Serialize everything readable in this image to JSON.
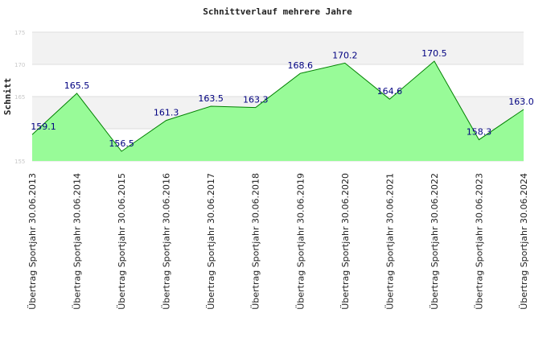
{
  "chart_data": {
    "type": "area",
    "title": "Schnittverlauf mehrere Jahre",
    "ylabel": "Schnitt",
    "xlabel": "",
    "ylim": [
      155,
      175
    ],
    "yticks": [
      "155",
      "165",
      "170",
      "175"
    ],
    "categories": [
      "Übertrag Sportjahr 30.06.2013",
      "Übertrag Sportjahr 30.06.2014",
      "Übertrag Sportjahr 30.06.2015",
      "Übertrag Sportjahr 30.06.2016",
      "Übertrag Sportjahr 30.06.2017",
      "Übertrag Sportjahr 30.06.2018",
      "Übertrag Sportjahr 30.06.2019",
      "Übertrag Sportjahr 30.06.2020",
      "Übertrag Sportjahr 30.06.2021",
      "Übertrag Sportjahr 30.06.2022",
      "Übertrag Sportjahr 30.06.2023",
      "Übertrag Sportjahr 30.06.2024"
    ],
    "values": [
      159.1,
      165.5,
      156.5,
      161.3,
      163.5,
      163.3,
      168.6,
      170.2,
      164.6,
      170.5,
      158.3,
      163.0
    ],
    "data_labels": [
      "159.1",
      "165.5",
      "156.5",
      "161.3",
      "163.5",
      "163.3",
      "168.6",
      "170.2",
      "164.6",
      "170.5",
      "158.3",
      "163.0"
    ],
    "grid": true,
    "legend": "none",
    "colors": {
      "fill": "#98fb98",
      "line": "#008000",
      "data_label": "#000080",
      "band": "#f2f2f2",
      "gridline": "#dddddd"
    }
  }
}
